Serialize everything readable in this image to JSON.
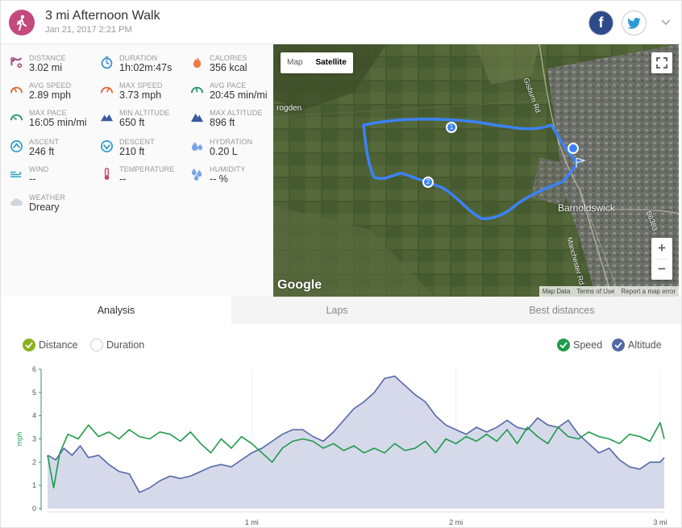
{
  "header": {
    "title": "3 mi Afternoon Walk",
    "date": "Jan 21, 2017 2:21 PM",
    "accent": "#c4497c"
  },
  "stats": [
    {
      "icon": "distance-icon",
      "label": "DISTANCE",
      "value": "3.02 mi",
      "color": "#a0457d"
    },
    {
      "icon": "duration-icon",
      "label": "DURATION",
      "value": "1h:02m:47s",
      "color": "#3a8fd8"
    },
    {
      "icon": "calories-icon",
      "label": "CALORIES",
      "value": "356 kcal",
      "color": "#f07b3f"
    },
    {
      "icon": "avg-speed-icon",
      "label": "AVG SPEED",
      "value": "2.89 mph",
      "color": "#e06a3a"
    },
    {
      "icon": "max-speed-icon",
      "label": "MAX SPEED",
      "value": "3.73 mph",
      "color": "#e06a3a"
    },
    {
      "icon": "avg-pace-icon",
      "label": "AVG PACE",
      "value": "20:45 min/mi",
      "color": "#2a9a6a"
    },
    {
      "icon": "max-pace-icon",
      "label": "MAX PACE",
      "value": "16:05 min/mi",
      "color": "#2a9a6a"
    },
    {
      "icon": "min-altitude-icon",
      "label": "MIN ALTITUDE",
      "value": "650 ft",
      "color": "#3b5aa0"
    },
    {
      "icon": "max-altitude-icon",
      "label": "MAX ALTITUDE",
      "value": "896 ft",
      "color": "#3b5aa0"
    },
    {
      "icon": "ascent-icon",
      "label": "ASCENT",
      "value": "246 ft",
      "color": "#2a9ad0"
    },
    {
      "icon": "descent-icon",
      "label": "DESCENT",
      "value": "210 ft",
      "color": "#2a9ad0"
    },
    {
      "icon": "hydration-icon",
      "label": "HYDRATION",
      "value": "0.20 L",
      "color": "#7aa6e8"
    },
    {
      "icon": "wind-icon",
      "label": "WIND",
      "value": "--",
      "color": "#2aa6c8"
    },
    {
      "icon": "temperature-icon",
      "label": "TEMPERATURE",
      "value": "--",
      "color": "#c04a6a"
    },
    {
      "icon": "humidity-icon",
      "label": "HUMIDITY",
      "value": "-- %",
      "color": "#7aa6e8"
    },
    {
      "icon": "weather-icon",
      "label": "WEATHER",
      "value": "Dreary",
      "color": "#cfd6dc"
    }
  ],
  "map": {
    "type_map": "Map",
    "type_satellite": "Satellite",
    "labels": {
      "place1": "rogden",
      "town": "Barnoldswick",
      "road1": "Gisburn Rd",
      "road2": "Manchester Rd",
      "road3": "B6383"
    },
    "logo": "Google",
    "attribution": [
      "Map Data",
      "Terms of Use",
      "Report a map error"
    ],
    "zoom_in": "+",
    "zoom_out": "−",
    "markers": [
      "1",
      "2"
    ]
  },
  "tabs": [
    {
      "label": "Analysis",
      "active": true
    },
    {
      "label": "Laps",
      "active": false
    },
    {
      "label": "Best distances",
      "active": false
    }
  ],
  "toggles": {
    "distance": "Distance",
    "duration": "Duration",
    "speed": "Speed",
    "altitude": "Altitude"
  },
  "colors": {
    "speed": "#1e9a4a",
    "altitude": "#5468a8",
    "altitude_fill": "#d5d9ea",
    "toggle_on": "#8ab21c",
    "route": "#3b82f6"
  },
  "chart_data": {
    "type": "line",
    "xlabel": "",
    "ylabel": "mph",
    "xlim": [
      0,
      3.02
    ],
    "ylim": [
      0,
      6
    ],
    "yticks": [
      0,
      1,
      2,
      3,
      4,
      5,
      6
    ],
    "xticks": [
      {
        "v": 1,
        "label": "1 mi"
      },
      {
        "v": 2,
        "label": "2 mi"
      },
      {
        "v": 3,
        "label": "3 mi"
      }
    ],
    "series": [
      {
        "name": "Speed",
        "x": [
          0,
          0.03,
          0.06,
          0.1,
          0.15,
          0.2,
          0.25,
          0.3,
          0.35,
          0.4,
          0.45,
          0.5,
          0.55,
          0.6,
          0.65,
          0.7,
          0.75,
          0.8,
          0.85,
          0.9,
          0.95,
          1.0,
          1.05,
          1.1,
          1.15,
          1.2,
          1.25,
          1.3,
          1.35,
          1.4,
          1.45,
          1.5,
          1.55,
          1.6,
          1.65,
          1.7,
          1.75,
          1.8,
          1.85,
          1.9,
          1.95,
          2.0,
          2.05,
          2.1,
          2.15,
          2.2,
          2.25,
          2.3,
          2.35,
          2.4,
          2.45,
          2.5,
          2.55,
          2.6,
          2.65,
          2.7,
          2.75,
          2.8,
          2.85,
          2.9,
          2.95,
          3.0,
          3.02
        ],
        "values": [
          2.3,
          0.9,
          2.4,
          3.2,
          3.0,
          3.6,
          3.1,
          3.3,
          3.0,
          3.4,
          3.1,
          3.0,
          3.3,
          3.2,
          2.9,
          3.3,
          2.8,
          2.4,
          3.0,
          2.6,
          3.1,
          2.8,
          2.4,
          2.0,
          2.6,
          2.9,
          3.0,
          2.9,
          2.6,
          2.8,
          2.5,
          2.7,
          2.4,
          2.6,
          2.4,
          2.8,
          2.5,
          2.6,
          2.9,
          2.4,
          3.0,
          2.8,
          3.1,
          2.9,
          3.2,
          2.9,
          3.4,
          2.8,
          3.5,
          3.1,
          2.8,
          3.5,
          3.1,
          3.0,
          3.3,
          3.1,
          3.0,
          2.8,
          3.2,
          3.1,
          2.9,
          3.7,
          3.0
        ]
      },
      {
        "name": "Altitude",
        "x": [
          0,
          0.04,
          0.08,
          0.12,
          0.16,
          0.2,
          0.25,
          0.3,
          0.35,
          0.4,
          0.45,
          0.5,
          0.55,
          0.6,
          0.65,
          0.7,
          0.75,
          0.8,
          0.85,
          0.9,
          0.95,
          1.0,
          1.05,
          1.1,
          1.15,
          1.2,
          1.25,
          1.3,
          1.35,
          1.4,
          1.45,
          1.5,
          1.55,
          1.6,
          1.65,
          1.7,
          1.75,
          1.8,
          1.85,
          1.9,
          1.95,
          2.0,
          2.05,
          2.1,
          2.15,
          2.2,
          2.25,
          2.3,
          2.35,
          2.4,
          2.45,
          2.5,
          2.55,
          2.6,
          2.65,
          2.7,
          2.75,
          2.8,
          2.85,
          2.9,
          2.95,
          3.0,
          3.02
        ],
        "values": [
          2.3,
          2.1,
          2.6,
          2.3,
          2.7,
          2.2,
          2.3,
          1.9,
          1.6,
          1.5,
          0.7,
          0.9,
          1.2,
          1.4,
          1.3,
          1.4,
          1.6,
          1.8,
          1.9,
          1.8,
          2.1,
          2.4,
          2.6,
          2.9,
          3.2,
          3.4,
          3.4,
          3.1,
          2.9,
          3.3,
          3.8,
          4.3,
          4.6,
          5.0,
          5.6,
          5.7,
          5.3,
          4.9,
          4.6,
          4.0,
          3.6,
          3.4,
          3.2,
          3.5,
          3.3,
          3.5,
          3.8,
          3.5,
          3.4,
          3.9,
          3.6,
          3.5,
          3.8,
          3.2,
          2.8,
          2.4,
          2.6,
          2.1,
          1.8,
          1.7,
          2.0,
          2.0,
          2.2
        ]
      }
    ]
  }
}
